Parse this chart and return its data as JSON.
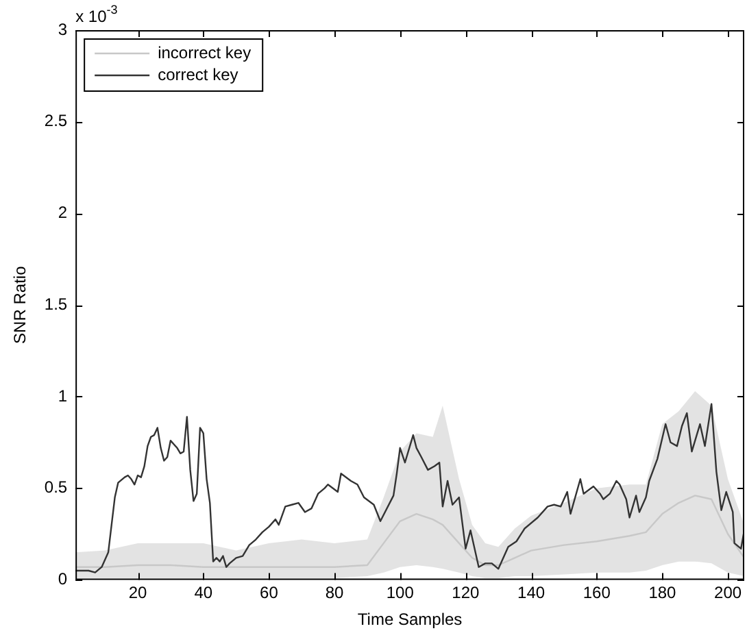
{
  "chart_data": {
    "type": "line",
    "xlabel": "Time Samples",
    "ylabel": "SNR Ratio",
    "annotations": [
      "x 10$^{-3}$"
    ],
    "xlim": [
      1,
      205
    ],
    "xticks": [
      20,
      40,
      60,
      80,
      100,
      120,
      140,
      160,
      180,
      200
    ],
    "ylim": [
      0,
      3
    ],
    "yticks": [
      0,
      0.5,
      1,
      1.5,
      2,
      2.5,
      3
    ],
    "grid": false,
    "legend": "top left",
    "marker": "none",
    "line_style": "solid",
    "series": [
      {
        "name": "incorrect key",
        "color": "#c8c8c8",
        "x": [
          1,
          10,
          20,
          30,
          40,
          50,
          60,
          70,
          80,
          90,
          95,
          100,
          105,
          110,
          113,
          118,
          122,
          126,
          130,
          135,
          140,
          150,
          160,
          170,
          175,
          180,
          185,
          190,
          195,
          200,
          205
        ],
        "values": [
          0.07,
          0.07,
          0.08,
          0.08,
          0.07,
          0.07,
          0.07,
          0.07,
          0.07,
          0.08,
          0.2,
          0.32,
          0.36,
          0.33,
          0.3,
          0.2,
          0.12,
          0.08,
          0.08,
          0.12,
          0.16,
          0.19,
          0.21,
          0.24,
          0.26,
          0.36,
          0.42,
          0.46,
          0.44,
          0.25,
          0.12
        ],
        "lower": [
          0.01,
          0.01,
          0.01,
          0.01,
          0.01,
          0.01,
          0.01,
          0.01,
          0.01,
          0.02,
          0.04,
          0.07,
          0.08,
          0.07,
          0.06,
          0.04,
          0.02,
          0.01,
          0.01,
          0.02,
          0.02,
          0.03,
          0.04,
          0.04,
          0.05,
          0.08,
          0.1,
          0.1,
          0.09,
          0.04,
          0.02
        ],
        "upper": [
          0.15,
          0.16,
          0.2,
          0.2,
          0.2,
          0.16,
          0.2,
          0.22,
          0.2,
          0.22,
          0.45,
          0.7,
          0.8,
          0.78,
          0.95,
          0.55,
          0.3,
          0.2,
          0.18,
          0.28,
          0.35,
          0.42,
          0.5,
          0.52,
          0.52,
          0.85,
          0.92,
          1.03,
          0.95,
          0.55,
          0.3
        ]
      },
      {
        "name": "correct key",
        "color": "#333333",
        "x": [
          1,
          5,
          7,
          9,
          11,
          12,
          13,
          14,
          16,
          17,
          18,
          19,
          20,
          21,
          22,
          23,
          24,
          25,
          26,
          27,
          28,
          29,
          30,
          31,
          32,
          33,
          34,
          35,
          36,
          37,
          38,
          39,
          40,
          41,
          42,
          43,
          44,
          45,
          46,
          47,
          48,
          50,
          52,
          54,
          56,
          58,
          60,
          62,
          63,
          65,
          67,
          69,
          71,
          73,
          75,
          77,
          78,
          81,
          82,
          85,
          87,
          89,
          92,
          94,
          98,
          99,
          100,
          101.5,
          104,
          105,
          106.5,
          108.5,
          110.5,
          112,
          113,
          114.5,
          116,
          118,
          120,
          121.5,
          124,
          126,
          128,
          130,
          133,
          135.5,
          138,
          142,
          145,
          147,
          149,
          151,
          152,
          155,
          156,
          159,
          161,
          162,
          164,
          166,
          167,
          169,
          170,
          172,
          173,
          175,
          176,
          178.5,
          181,
          182.5,
          184.5,
          186,
          187.5,
          189,
          191.5,
          193,
          195,
          196.5,
          198,
          199.5,
          201.5,
          202,
          204,
          205
        ],
        "values": [
          0.05,
          0.05,
          0.04,
          0.07,
          0.15,
          0.3,
          0.45,
          0.53,
          0.56,
          0.57,
          0.55,
          0.52,
          0.57,
          0.56,
          0.62,
          0.73,
          0.78,
          0.79,
          0.83,
          0.72,
          0.65,
          0.67,
          0.76,
          0.74,
          0.72,
          0.69,
          0.7,
          0.89,
          0.6,
          0.43,
          0.47,
          0.83,
          0.8,
          0.55,
          0.42,
          0.1,
          0.12,
          0.1,
          0.13,
          0.07,
          0.09,
          0.12,
          0.13,
          0.19,
          0.22,
          0.26,
          0.29,
          0.33,
          0.3,
          0.4,
          0.41,
          0.42,
          0.37,
          0.39,
          0.47,
          0.5,
          0.52,
          0.48,
          0.58,
          0.54,
          0.52,
          0.45,
          0.41,
          0.32,
          0.46,
          0.58,
          0.72,
          0.64,
          0.79,
          0.72,
          0.67,
          0.6,
          0.62,
          0.64,
          0.4,
          0.54,
          0.41,
          0.45,
          0.17,
          0.27,
          0.07,
          0.09,
          0.09,
          0.06,
          0.18,
          0.21,
          0.28,
          0.34,
          0.4,
          0.41,
          0.4,
          0.48,
          0.36,
          0.55,
          0.47,
          0.51,
          0.47,
          0.44,
          0.47,
          0.54,
          0.52,
          0.44,
          0.34,
          0.46,
          0.37,
          0.45,
          0.54,
          0.66,
          0.85,
          0.75,
          0.73,
          0.84,
          0.91,
          0.7,
          0.85,
          0.73,
          0.96,
          0.59,
          0.38,
          0.48,
          0.37,
          0.2,
          0.17,
          0.27
        ]
      }
    ]
  }
}
